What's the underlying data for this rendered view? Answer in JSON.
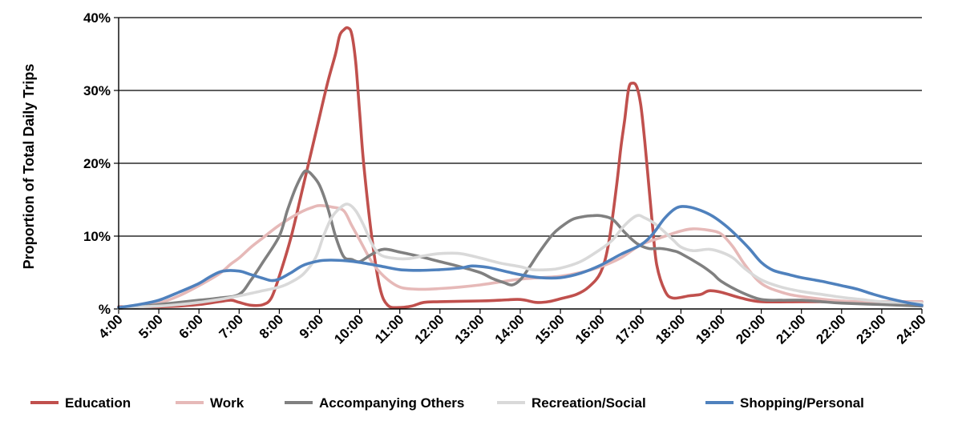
{
  "chart_data": {
    "type": "line",
    "title": "",
    "xlabel": "",
    "ylabel": "Proportion of Total Daily Trips",
    "ylim": [
      0,
      40
    ],
    "yticks": [
      "%",
      "10%",
      "20%",
      "30%",
      "40%"
    ],
    "xlim": [
      4,
      24
    ],
    "xticks": [
      "4:00",
      "5:00",
      "6:00",
      "7:00",
      "8:00",
      "9:00",
      "10:00",
      "11:00",
      "12:00",
      "13:00",
      "14:00",
      "15:00",
      "16:00",
      "17:00",
      "18:00",
      "19:00",
      "20:00",
      "21:00",
      "22:00",
      "23:00",
      "24:00"
    ],
    "grid": "horizontal",
    "legend_position": "bottom",
    "x_unit": "hour of day",
    "series": [
      {
        "name": "Education",
        "color": "#C0504D",
        "points": [
          [
            4.0,
            0.3
          ],
          [
            4.5,
            0.3
          ],
          [
            5.0,
            0.3
          ],
          [
            5.5,
            0.4
          ],
          [
            6.0,
            0.6
          ],
          [
            6.5,
            1.0
          ],
          [
            6.8,
            1.2
          ],
          [
            7.0,
            0.9
          ],
          [
            7.3,
            0.5
          ],
          [
            7.6,
            0.6
          ],
          [
            7.8,
            1.5
          ],
          [
            8.0,
            4.5
          ],
          [
            8.3,
            10
          ],
          [
            8.6,
            17
          ],
          [
            8.9,
            24
          ],
          [
            9.2,
            31
          ],
          [
            9.4,
            35
          ],
          [
            9.5,
            37.5
          ],
          [
            9.6,
            38.3
          ],
          [
            9.7,
            38.6
          ],
          [
            9.8,
            37.8
          ],
          [
            9.9,
            34
          ],
          [
            10.0,
            27
          ],
          [
            10.1,
            20
          ],
          [
            10.3,
            10
          ],
          [
            10.5,
            3
          ],
          [
            10.7,
            0.5
          ],
          [
            11.0,
            0.2
          ],
          [
            11.3,
            0.4
          ],
          [
            11.6,
            0.9
          ],
          [
            12.0,
            1.0
          ],
          [
            13.0,
            1.1
          ],
          [
            13.5,
            1.2
          ],
          [
            14.0,
            1.3
          ],
          [
            14.4,
            0.9
          ],
          [
            14.7,
            1.0
          ],
          [
            15.0,
            1.4
          ],
          [
            15.4,
            2.0
          ],
          [
            15.7,
            3.0
          ],
          [
            16.0,
            5.0
          ],
          [
            16.2,
            9
          ],
          [
            16.4,
            17
          ],
          [
            16.5,
            22
          ],
          [
            16.6,
            26
          ],
          [
            16.7,
            30.3
          ],
          [
            16.8,
            31
          ],
          [
            16.9,
            30.5
          ],
          [
            17.0,
            28
          ],
          [
            17.1,
            23
          ],
          [
            17.2,
            17
          ],
          [
            17.3,
            11
          ],
          [
            17.4,
            6
          ],
          [
            17.6,
            2.5
          ],
          [
            17.8,
            1.5
          ],
          [
            18.2,
            1.8
          ],
          [
            18.5,
            2.0
          ],
          [
            18.7,
            2.5
          ],
          [
            19.0,
            2.3
          ],
          [
            19.5,
            1.5
          ],
          [
            20.0,
            1.0
          ],
          [
            21.0,
            1.0
          ],
          [
            22.0,
            1.0
          ],
          [
            23.0,
            1.0
          ],
          [
            24.0,
            1.0
          ]
        ]
      },
      {
        "name": "Work",
        "color": "#E6B9B8",
        "points": [
          [
            4.0,
            0.2
          ],
          [
            4.5,
            0.4
          ],
          [
            5.0,
            0.8
          ],
          [
            5.5,
            1.8
          ],
          [
            6.0,
            3.2
          ],
          [
            6.5,
            4.8
          ],
          [
            6.8,
            6.2
          ],
          [
            7.0,
            7.0
          ],
          [
            7.3,
            8.5
          ],
          [
            7.6,
            9.8
          ],
          [
            8.0,
            11.5
          ],
          [
            8.5,
            13.2
          ],
          [
            8.8,
            13.9
          ],
          [
            9.0,
            14.2
          ],
          [
            9.3,
            14.0
          ],
          [
            9.6,
            13.5
          ],
          [
            9.8,
            11.5
          ],
          [
            10.0,
            9.5
          ],
          [
            10.3,
            6.5
          ],
          [
            10.6,
            4.5
          ],
          [
            11.0,
            3.0
          ],
          [
            11.5,
            2.7
          ],
          [
            12.0,
            2.8
          ],
          [
            12.5,
            3.0
          ],
          [
            13.0,
            3.3
          ],
          [
            13.5,
            3.7
          ],
          [
            14.0,
            4.1
          ],
          [
            14.5,
            4.3
          ],
          [
            15.0,
            4.5
          ],
          [
            15.5,
            5.0
          ],
          [
            16.0,
            5.8
          ],
          [
            16.5,
            7.0
          ],
          [
            17.0,
            8.8
          ],
          [
            17.5,
            9.8
          ],
          [
            18.0,
            10.7
          ],
          [
            18.3,
            11.0
          ],
          [
            18.7,
            10.8
          ],
          [
            19.0,
            10.3
          ],
          [
            19.3,
            8.5
          ],
          [
            19.6,
            6.0
          ],
          [
            20.0,
            3.5
          ],
          [
            20.5,
            2.3
          ],
          [
            21.0,
            1.7
          ],
          [
            22.0,
            1.1
          ],
          [
            23.0,
            1.0
          ],
          [
            24.0,
            1.0
          ]
        ]
      },
      {
        "name": "Accompanying Others",
        "color": "#808080",
        "points": [
          [
            4.0,
            0.1
          ],
          [
            4.5,
            0.3
          ],
          [
            5.0,
            0.6
          ],
          [
            5.5,
            0.9
          ],
          [
            6.0,
            1.2
          ],
          [
            6.5,
            1.5
          ],
          [
            7.0,
            2.0
          ],
          [
            7.3,
            4.0
          ],
          [
            7.6,
            6.5
          ],
          [
            8.0,
            10
          ],
          [
            8.2,
            13.5
          ],
          [
            8.4,
            16.5
          ],
          [
            8.6,
            18.7
          ],
          [
            8.7,
            18.9
          ],
          [
            8.8,
            18.5
          ],
          [
            9.0,
            17
          ],
          [
            9.2,
            14
          ],
          [
            9.4,
            10
          ],
          [
            9.6,
            7.2
          ],
          [
            9.8,
            6.8
          ],
          [
            10.0,
            6.5
          ],
          [
            10.3,
            7.5
          ],
          [
            10.6,
            8.2
          ],
          [
            11.0,
            7.8
          ],
          [
            11.5,
            7.2
          ],
          [
            12.0,
            6.5
          ],
          [
            12.5,
            5.8
          ],
          [
            13.0,
            5.0
          ],
          [
            13.3,
            4.2
          ],
          [
            13.6,
            3.6
          ],
          [
            13.8,
            3.3
          ],
          [
            14.0,
            4.0
          ],
          [
            14.2,
            5.5
          ],
          [
            14.5,
            8.0
          ],
          [
            14.8,
            10.2
          ],
          [
            15.0,
            11.2
          ],
          [
            15.3,
            12.3
          ],
          [
            15.6,
            12.7
          ],
          [
            15.8,
            12.8
          ],
          [
            16.0,
            12.8
          ],
          [
            16.3,
            12.3
          ],
          [
            16.6,
            10.5
          ],
          [
            16.9,
            9.0
          ],
          [
            17.2,
            8.3
          ],
          [
            17.5,
            8.3
          ],
          [
            17.8,
            8.0
          ],
          [
            18.0,
            7.6
          ],
          [
            18.5,
            6.0
          ],
          [
            18.8,
            4.8
          ],
          [
            19.0,
            3.8
          ],
          [
            19.5,
            2.3
          ],
          [
            20.0,
            1.3
          ],
          [
            20.5,
            1.2
          ],
          [
            21.0,
            1.2
          ],
          [
            21.5,
            1.0
          ],
          [
            22.0,
            0.8
          ],
          [
            23.0,
            0.6
          ],
          [
            24.0,
            0.4
          ]
        ]
      },
      {
        "name": "Recreation/Social",
        "color": "#D9D9D9",
        "points": [
          [
            4.0,
            0.2
          ],
          [
            4.5,
            0.3
          ],
          [
            5.0,
            0.4
          ],
          [
            5.5,
            0.6
          ],
          [
            6.0,
            0.9
          ],
          [
            6.5,
            1.3
          ],
          [
            7.0,
            1.8
          ],
          [
            7.5,
            2.4
          ],
          [
            8.0,
            3.0
          ],
          [
            8.3,
            3.7
          ],
          [
            8.6,
            4.8
          ],
          [
            8.9,
            7
          ],
          [
            9.1,
            10
          ],
          [
            9.3,
            12.5
          ],
          [
            9.5,
            13.8
          ],
          [
            9.7,
            14.4
          ],
          [
            9.9,
            13.5
          ],
          [
            10.1,
            11.5
          ],
          [
            10.3,
            9.0
          ],
          [
            10.5,
            7.5
          ],
          [
            10.8,
            7.0
          ],
          [
            11.2,
            6.9
          ],
          [
            11.6,
            7.3
          ],
          [
            12.0,
            7.6
          ],
          [
            12.5,
            7.6
          ],
          [
            13.0,
            7.0
          ],
          [
            13.5,
            6.3
          ],
          [
            14.0,
            5.8
          ],
          [
            14.3,
            5.4
          ],
          [
            14.7,
            5.4
          ],
          [
            15.0,
            5.6
          ],
          [
            15.5,
            6.5
          ],
          [
            16.0,
            8.2
          ],
          [
            16.3,
            9.5
          ],
          [
            16.6,
            11.5
          ],
          [
            16.9,
            12.8
          ],
          [
            17.1,
            12.5
          ],
          [
            17.4,
            11.5
          ],
          [
            17.8,
            9.5
          ],
          [
            18.0,
            8.5
          ],
          [
            18.3,
            8.0
          ],
          [
            18.7,
            8.2
          ],
          [
            19.0,
            7.8
          ],
          [
            19.3,
            7.0
          ],
          [
            19.6,
            5.5
          ],
          [
            20.0,
            4.0
          ],
          [
            20.5,
            3.0
          ],
          [
            21.0,
            2.4
          ],
          [
            21.5,
            2.0
          ],
          [
            22.0,
            1.6
          ],
          [
            22.5,
            1.3
          ],
          [
            23.0,
            1.0
          ],
          [
            24.0,
            0.8
          ]
        ]
      },
      {
        "name": "Shopping/Personal",
        "color": "#4F81BD",
        "points": [
          [
            4.0,
            0.2
          ],
          [
            4.5,
            0.6
          ],
          [
            5.0,
            1.2
          ],
          [
            5.5,
            2.3
          ],
          [
            6.0,
            3.5
          ],
          [
            6.3,
            4.5
          ],
          [
            6.6,
            5.2
          ],
          [
            7.0,
            5.2
          ],
          [
            7.3,
            4.7
          ],
          [
            7.6,
            4.2
          ],
          [
            7.8,
            3.9
          ],
          [
            8.0,
            4.1
          ],
          [
            8.3,
            5.0
          ],
          [
            8.6,
            6.0
          ],
          [
            9.0,
            6.6
          ],
          [
            9.3,
            6.7
          ],
          [
            9.7,
            6.6
          ],
          [
            10.0,
            6.4
          ],
          [
            10.5,
            5.9
          ],
          [
            11.0,
            5.4
          ],
          [
            11.5,
            5.3
          ],
          [
            12.0,
            5.4
          ],
          [
            12.5,
            5.6
          ],
          [
            12.8,
            5.9
          ],
          [
            13.2,
            5.7
          ],
          [
            13.6,
            5.2
          ],
          [
            14.0,
            4.7
          ],
          [
            14.5,
            4.3
          ],
          [
            15.0,
            4.3
          ],
          [
            15.5,
            4.9
          ],
          [
            16.0,
            6.0
          ],
          [
            16.5,
            7.5
          ],
          [
            17.0,
            8.8
          ],
          [
            17.3,
            10.3
          ],
          [
            17.6,
            12.5
          ],
          [
            17.9,
            13.9
          ],
          [
            18.2,
            14.0
          ],
          [
            18.5,
            13.5
          ],
          [
            18.8,
            12.7
          ],
          [
            19.1,
            11.5
          ],
          [
            19.4,
            10.0
          ],
          [
            19.7,
            8.3
          ],
          [
            20.0,
            6.4
          ],
          [
            20.3,
            5.3
          ],
          [
            20.7,
            4.7
          ],
          [
            21.0,
            4.3
          ],
          [
            21.5,
            3.8
          ],
          [
            22.0,
            3.2
          ],
          [
            22.4,
            2.7
          ],
          [
            22.8,
            2.0
          ],
          [
            23.2,
            1.4
          ],
          [
            23.6,
            0.9
          ],
          [
            24.0,
            0.5
          ]
        ]
      }
    ]
  }
}
